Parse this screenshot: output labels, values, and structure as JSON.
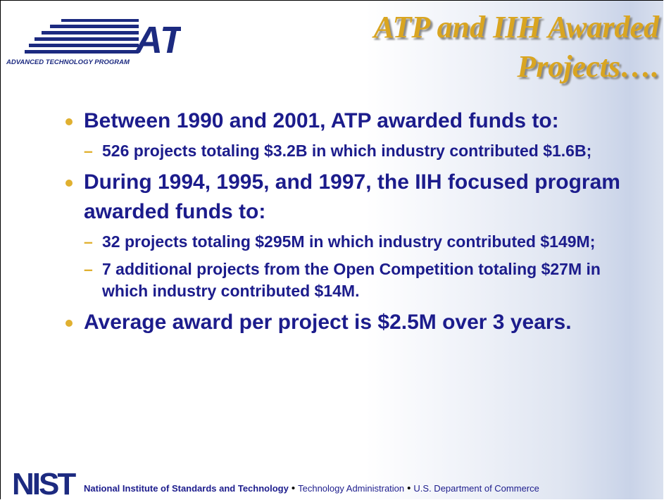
{
  "logo": {
    "mark": "ATP",
    "caption": "ADVANCED TECHNOLOGY PROGRAM"
  },
  "title": "ATP and IIH Awarded Projects….",
  "bullets": [
    {
      "text": "Between 1990 and 2001, ATP awarded funds to:",
      "subs": [
        "526 projects totaling $3.2B in which industry contributed $1.6B;"
      ]
    },
    {
      "text": "During 1994, 1995, and 1997, the IIH focused program awarded funds to:",
      "subs": [
        "32 projects totaling $295M in which industry contributed $149M;",
        "7 additional projects from the Open Competition totaling $27M in which industry contributed $14M."
      ]
    },
    {
      "text": "Average award per project is $2.5M over 3 years.",
      "subs": []
    }
  ],
  "footer": {
    "logo": "NIST",
    "items": [
      "National Institute of Standards and Technology",
      "Technology Administration",
      "U.S. Department of Commerce"
    ],
    "separator": "•"
  }
}
